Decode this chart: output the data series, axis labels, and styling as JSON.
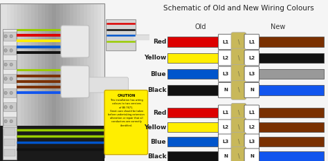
{
  "title": "Schematic of Old and New Wiring Colours",
  "title_fontsize": 7.5,
  "bg_color": "#f5f5f5",
  "old_col_label": "Old",
  "new_col_label": "New",
  "col_label_fontsize": 7,
  "row_label_fontsize": 6.5,
  "tag_fontsize": 5,
  "connector_color": "#c8b85a",
  "group1_rows": [
    {
      "name": "Red",
      "old_color": "#dd0000",
      "label": "L1",
      "new_color": "#7a3000"
    },
    {
      "name": "Yellow",
      "old_color": "#ffee00",
      "label": "L2",
      "new_color": "#111111"
    },
    {
      "name": "Blue",
      "old_color": "#0055cc",
      "label": "L3",
      "new_color": "#999999"
    },
    {
      "name": "Black",
      "old_color": "#111111",
      "label": "N",
      "new_color": "#1155ee"
    }
  ],
  "group2_rows": [
    {
      "name": "Red",
      "old_color": "#dd0000",
      "label": "L1",
      "new_color": "#7a3000"
    },
    {
      "name": "Yellow",
      "old_color": "#ffee00",
      "label": "L2",
      "new_color": "#7a3000"
    },
    {
      "name": "Blue",
      "old_color": "#0055cc",
      "label": "L3",
      "new_color": "#7a3000"
    },
    {
      "name": "Black",
      "old_color": "#111111",
      "label": "N",
      "new_color": "#1155ee"
    }
  ],
  "left_panel_color": "#c8c8c8",
  "caution_bg": "#ffee00",
  "caution_border": "#ccaa00"
}
